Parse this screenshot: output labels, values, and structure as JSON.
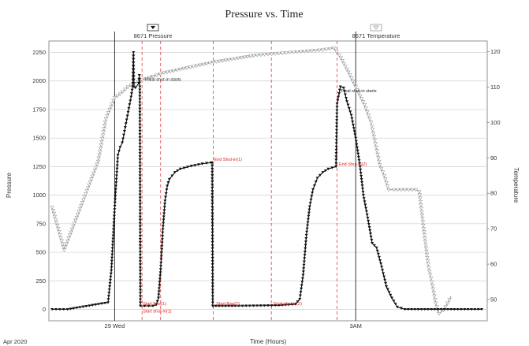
{
  "chart_data": {
    "type": "line",
    "title": "Pressure vs. Time",
    "xlabel": "Time (Hours)",
    "ylabel": "Pressure",
    "y2label": "Temperature",
    "date_label": "Apr 2020",
    "x_ticks": [
      {
        "x": 29,
        "label": "29 Wed"
      },
      {
        "x": 51,
        "label": "3AM"
      }
    ],
    "xlim": [
      23,
      63
    ],
    "ylim": [
      -100,
      2350
    ],
    "y2lim": [
      44,
      123
    ],
    "yticks": [
      0,
      250,
      500,
      750,
      1000,
      1250,
      1500,
      1750,
      2000,
      2250
    ],
    "y2ticks": [
      50,
      60,
      70,
      80,
      90,
      100,
      110,
      120
    ],
    "grid": true,
    "legend": "top",
    "colors": {
      "pressure": "#111111",
      "temperature": "#9a9a9a",
      "events": "#e02020",
      "cursor": "#222222"
    },
    "series": [
      {
        "name": "8671 Pressure",
        "axis": "left",
        "color": "#111111",
        "points": [
          [
            23.3,
            0
          ],
          [
            24.7,
            0
          ],
          [
            28.4,
            60
          ],
          [
            28.7,
            340
          ],
          [
            28.9,
            700
          ],
          [
            29.1,
            1050
          ],
          [
            29.3,
            1350
          ],
          [
            29.5,
            1420
          ],
          [
            29.7,
            1460
          ],
          [
            29.9,
            1560
          ],
          [
            30.1,
            1660
          ],
          [
            30.3,
            1760
          ],
          [
            30.5,
            1860
          ],
          [
            30.65,
            1950
          ],
          [
            30.72,
            2250
          ],
          [
            30.76,
            1950
          ],
          [
            30.9,
            1940
          ],
          [
            31.2,
            1980
          ],
          [
            31.25,
            2050
          ],
          [
            31.3,
            1950
          ],
          [
            31.35,
            30
          ],
          [
            32.5,
            30
          ],
          [
            32.8,
            40
          ],
          [
            33.0,
            100
          ],
          [
            33.2,
            350
          ],
          [
            33.4,
            700
          ],
          [
            33.6,
            950
          ],
          [
            33.8,
            1080
          ],
          [
            34.0,
            1140
          ],
          [
            34.5,
            1200
          ],
          [
            35.0,
            1230
          ],
          [
            36.0,
            1255
          ],
          [
            37.0,
            1275
          ],
          [
            37.8,
            1285
          ],
          [
            37.9,
            1285
          ],
          [
            37.95,
            30
          ],
          [
            40.0,
            30
          ],
          [
            42.0,
            32
          ],
          [
            44.0,
            35
          ],
          [
            45.5,
            45
          ],
          [
            45.9,
            90
          ],
          [
            46.2,
            300
          ],
          [
            46.5,
            650
          ],
          [
            46.8,
            900
          ],
          [
            47.1,
            1050
          ],
          [
            47.5,
            1150
          ],
          [
            48.0,
            1200
          ],
          [
            48.5,
            1230
          ],
          [
            49.2,
            1250
          ],
          [
            49.3,
            1800
          ],
          [
            49.6,
            1950
          ],
          [
            49.9,
            1940
          ],
          [
            50.2,
            1820
          ],
          [
            50.6,
            1700
          ],
          [
            51.0,
            1500
          ],
          [
            51.4,
            1250
          ],
          [
            51.7,
            1000
          ],
          [
            52.1,
            800
          ],
          [
            52.5,
            580
          ],
          [
            52.9,
            540
          ],
          [
            53.3,
            400
          ],
          [
            53.8,
            200
          ],
          [
            54.3,
            100
          ],
          [
            54.8,
            20
          ],
          [
            55.5,
            0
          ],
          [
            57.0,
            0
          ],
          [
            60.0,
            0
          ],
          [
            62.5,
            0
          ]
        ]
      },
      {
        "name": "8671 Temperature",
        "axis": "right",
        "color": "#9a9a9a",
        "points": [
          [
            23.3,
            76
          ],
          [
            24.4,
            64
          ],
          [
            27.5,
            89
          ],
          [
            28.2,
            101
          ],
          [
            29.0,
            107
          ],
          [
            29.5,
            108
          ],
          [
            30.2,
            110
          ],
          [
            30.8,
            111
          ],
          [
            31.5,
            112
          ],
          [
            32.5,
            113
          ],
          [
            33.5,
            114
          ],
          [
            35.0,
            115
          ],
          [
            36.5,
            116
          ],
          [
            38.0,
            117
          ],
          [
            40.0,
            118
          ],
          [
            42.0,
            119
          ],
          [
            44.0,
            119.5
          ],
          [
            46.0,
            120
          ],
          [
            48.0,
            120.5
          ],
          [
            49.0,
            121
          ],
          [
            49.5,
            119
          ],
          [
            50.2,
            115
          ],
          [
            51.0,
            110
          ],
          [
            51.8,
            105
          ],
          [
            52.4,
            100
          ],
          [
            52.8,
            94
          ],
          [
            53.2,
            88
          ],
          [
            53.6,
            85
          ],
          [
            54.0,
            81
          ],
          [
            54.5,
            81
          ],
          [
            55.5,
            81
          ],
          [
            56.5,
            81
          ],
          [
            56.8,
            80.5
          ],
          [
            57.2,
            70
          ],
          [
            57.6,
            60
          ],
          [
            58.0,
            54
          ],
          [
            58.3,
            49
          ],
          [
            58.6,
            46
          ],
          [
            59.0,
            47
          ],
          [
            59.4,
            49
          ],
          [
            59.7,
            51
          ]
        ]
      }
    ],
    "event_lines": [
      {
        "x": 31.5,
        "label": "",
        "side": "none"
      },
      {
        "x": 33.2,
        "label": "",
        "side": "none"
      },
      {
        "x": 38.0,
        "label": "",
        "side": "none"
      },
      {
        "x": 43.3,
        "label": "",
        "side": "none"
      },
      {
        "x": 49.3,
        "label": "",
        "side": "none"
      }
    ],
    "cursor_lines": [
      {
        "x": 29.0,
        "series": "8671 Pressure"
      },
      {
        "x": 51.0,
        "series": "8671 Temperature"
      }
    ],
    "annotations": [
      {
        "x": 31.7,
        "y": 2000,
        "text": "Initial shut-in starts",
        "color": "black"
      },
      {
        "x": 49.6,
        "y": 1900,
        "text": "Final shut-in starts",
        "color": "black"
      },
      {
        "x": 38.0,
        "y": 1300,
        "text": "End Shut-in(1)",
        "color": "red"
      },
      {
        "x": 49.4,
        "y": 1260,
        "text": "End Shut-in(2)",
        "color": "red"
      },
      {
        "x": 31.5,
        "y": 38,
        "text": "Start flow(1)",
        "color": "red"
      },
      {
        "x": 31.5,
        "y": -28,
        "text": "Start shut-in(1)",
        "color": "red"
      },
      {
        "x": 38.2,
        "y": 38,
        "text": "Start flow(2)",
        "color": "red"
      },
      {
        "x": 43.4,
        "y": 38,
        "text": "Start shut-in(2)",
        "color": "red"
      }
    ]
  }
}
